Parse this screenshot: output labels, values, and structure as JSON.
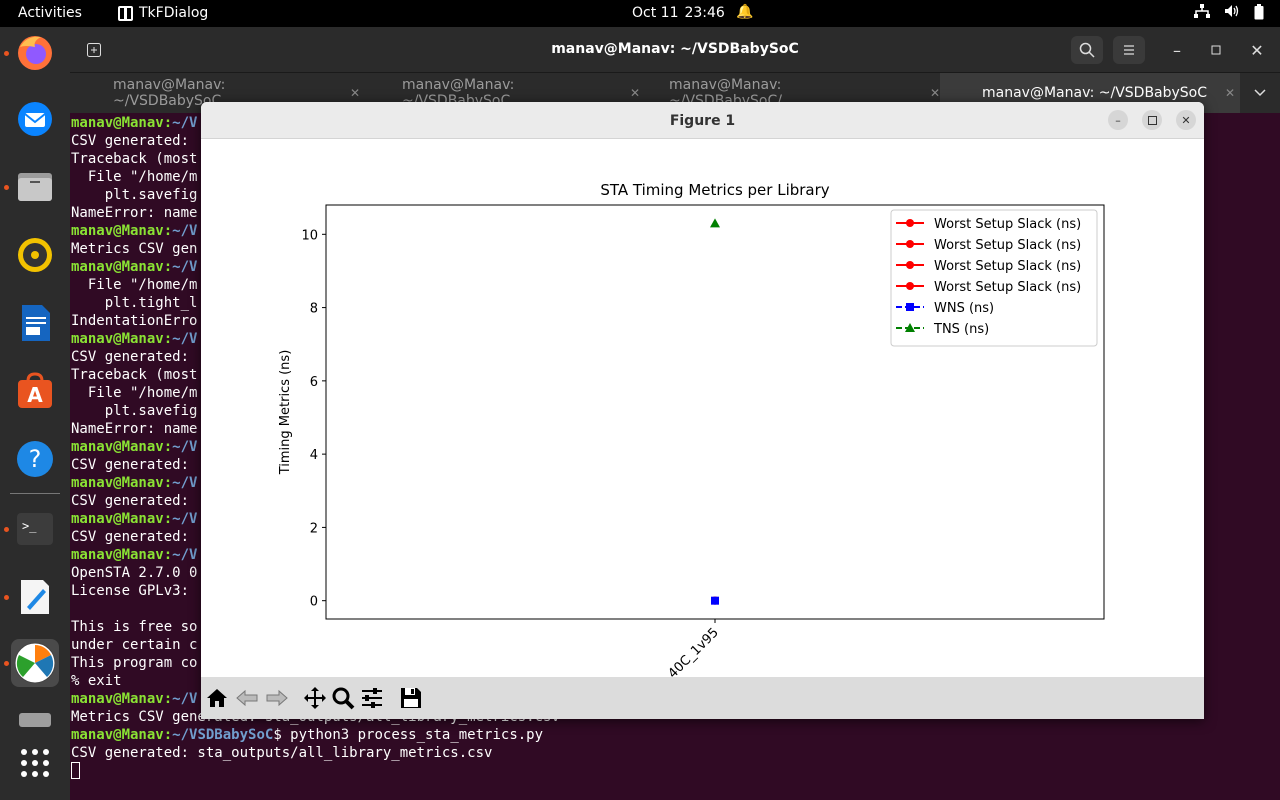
{
  "topbar": {
    "activities": "Activities",
    "app_name": "TkFDialog",
    "date": "Oct 11",
    "time": "23:46"
  },
  "dock": {
    "items": [
      {
        "name": "firefox-icon"
      },
      {
        "name": "thunderbird-icon"
      },
      {
        "name": "files-icon"
      },
      {
        "name": "rhythmbox-icon"
      },
      {
        "name": "libreoffice-writer-icon"
      },
      {
        "name": "app-center-icon"
      },
      {
        "name": "help-icon"
      },
      {
        "name": "terminal-icon"
      },
      {
        "name": "text-editor-icon"
      },
      {
        "name": "matplotlib-icon"
      },
      {
        "name": "drive-icon"
      },
      {
        "name": "show-apps-icon"
      }
    ]
  },
  "terminal": {
    "title": "manav@Manav: ~/VSDBabySoC",
    "tabs": [
      "manav@Manav: ~/VSDBabySoC",
      "manav@Manav: ~/VSDBabySoC",
      "manav@Manav: ~/VSDBabySoC/...",
      "manav@Manav: ~/VSDBabySoC"
    ],
    "prompt_user": "manav@Manav:",
    "prompt_path": "~/VSDBabySoC",
    "prompt_path_short": "~/V",
    "lines": [
      {
        "type": "prompt",
        "text": ""
      },
      {
        "type": "text",
        "text": "CSV generated:"
      },
      {
        "type": "text",
        "text": "Traceback (most"
      },
      {
        "type": "text",
        "text": "  File \"/home/m"
      },
      {
        "type": "text",
        "text": "    plt.savefig"
      },
      {
        "type": "text",
        "text": "NameError: name"
      },
      {
        "type": "prompt",
        "text": ""
      },
      {
        "type": "text",
        "text": "Metrics CSV gen"
      },
      {
        "type": "prompt",
        "text": ""
      },
      {
        "type": "text",
        "text": "  File \"/home/m"
      },
      {
        "type": "text",
        "text": "    plt.tight_l"
      },
      {
        "type": "text",
        "text": "IndentationErro"
      },
      {
        "type": "prompt",
        "text": ""
      },
      {
        "type": "text",
        "text": "CSV generated:"
      },
      {
        "type": "text",
        "text": "Traceback (most"
      },
      {
        "type": "text",
        "text": "  File \"/home/m"
      },
      {
        "type": "text",
        "text": "    plt.savefig"
      },
      {
        "type": "text",
        "text": "NameError: name"
      },
      {
        "type": "prompt",
        "text": ""
      },
      {
        "type": "text",
        "text": "CSV generated:"
      },
      {
        "type": "prompt",
        "text": ""
      },
      {
        "type": "text",
        "text": "CSV generated:"
      },
      {
        "type": "prompt",
        "text": ""
      },
      {
        "type": "text",
        "text": "CSV generated:"
      },
      {
        "type": "prompt",
        "text": ""
      },
      {
        "type": "text",
        "text": "OpenSTA 2.7.0 0"
      },
      {
        "type": "text",
        "text": "License GPLv3:"
      },
      {
        "type": "text",
        "text": ""
      },
      {
        "type": "text",
        "text": "This is free so"
      },
      {
        "type": "text",
        "text": "under certain c"
      },
      {
        "type": "text",
        "text": "This program co"
      },
      {
        "type": "text",
        "text": "% exit"
      },
      {
        "type": "prompt",
        "text": ""
      },
      {
        "type": "text",
        "text": "Metrics CSV generated: sta_outputs/all_library_metrics.csv"
      },
      {
        "type": "prompt_full",
        "text": "$ python3 process_sta_metrics.py"
      },
      {
        "type": "text",
        "text": "CSV generated: sta_outputs/all_library_metrics.csv"
      },
      {
        "type": "cursor",
        "text": ""
      }
    ]
  },
  "figure": {
    "window_title": "Figure 1",
    "toolbar": [
      "home-icon",
      "back-icon",
      "forward-icon",
      "pan-icon",
      "zoom-icon",
      "configure-subplots-icon",
      "save-icon"
    ]
  },
  "chart_data": {
    "type": "line",
    "title": "STA Timing Metrics per Library",
    "xlabel": "",
    "ylabel": "Timing Metrics (ns)",
    "categories": [
      "40C_1v95"
    ],
    "ylim": [
      -0.5,
      10.8
    ],
    "yticks": [
      0,
      2,
      4,
      6,
      8,
      10
    ],
    "grid": false,
    "legend_position": "upper right",
    "series": [
      {
        "name": "Worst Setup Slack (ns)",
        "values": [
          0
        ],
        "color": "#ff0000",
        "marker": "circle",
        "linestyle": "solid"
      },
      {
        "name": "Worst Setup Slack (ns)",
        "values": [
          0
        ],
        "color": "#ff0000",
        "marker": "circle",
        "linestyle": "solid"
      },
      {
        "name": "Worst Setup Slack (ns)",
        "values": [
          0
        ],
        "color": "#ff0000",
        "marker": "circle",
        "linestyle": "solid"
      },
      {
        "name": "Worst Setup Slack (ns)",
        "values": [
          0
        ],
        "color": "#ff0000",
        "marker": "circle",
        "linestyle": "solid"
      },
      {
        "name": "WNS (ns)",
        "values": [
          0
        ],
        "color": "#0000ff",
        "marker": "square",
        "linestyle": "dashed"
      },
      {
        "name": "TNS (ns)",
        "values": [
          10.3
        ],
        "color": "#008000",
        "marker": "triangle",
        "linestyle": "dashed"
      }
    ]
  }
}
